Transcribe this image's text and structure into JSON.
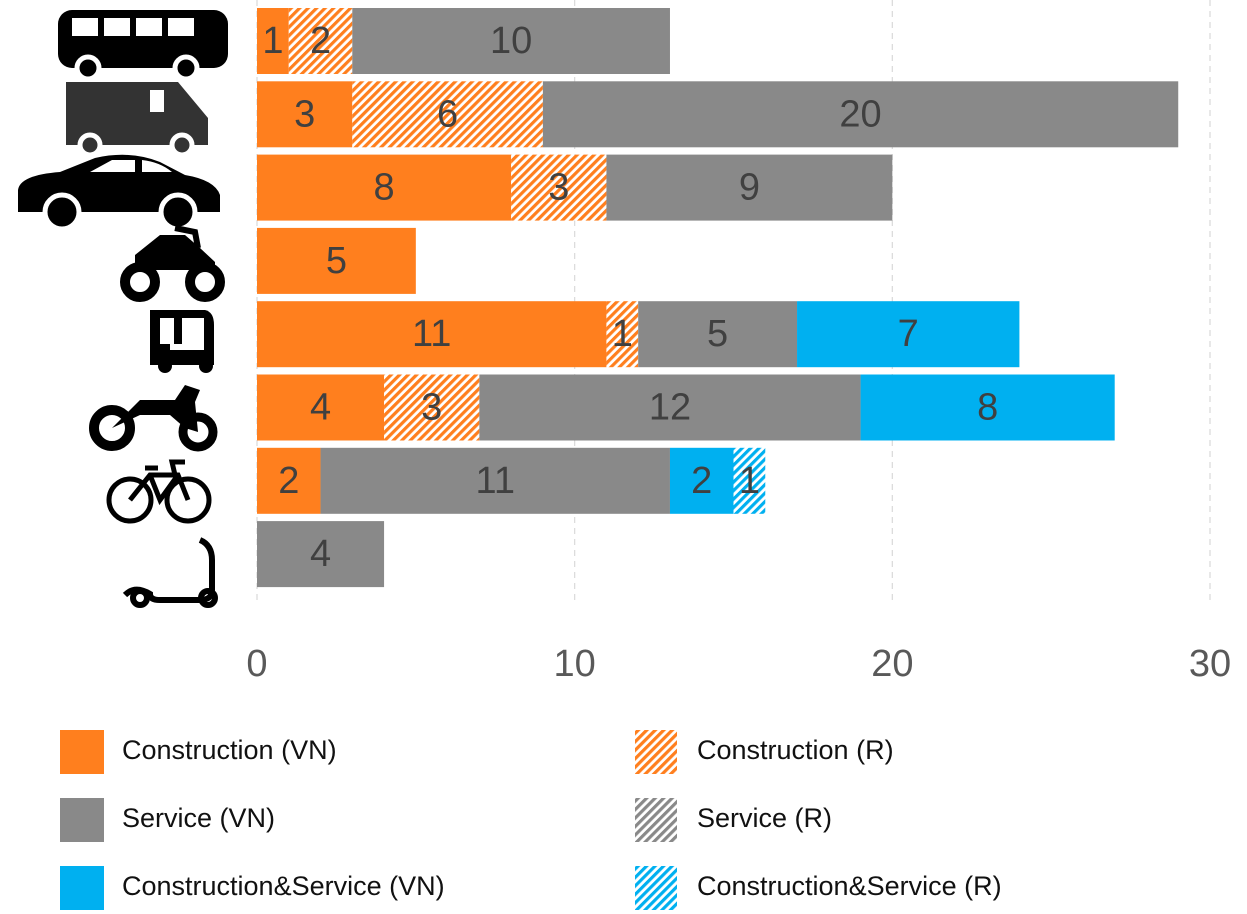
{
  "chart_data": {
    "type": "stacked-bar-horizontal",
    "categories": [
      null,
      null,
      null,
      null,
      null,
      null,
      null,
      null
    ],
    "series": [
      {
        "name": "Construction (VN)",
        "color": "#ff7f1e",
        "hatch": false,
        "values": [
          1,
          3,
          8,
          5,
          11,
          4,
          2,
          null
        ]
      },
      {
        "name": "Construction (R)",
        "color": "#ff7f1e",
        "hatch": true,
        "values": [
          2,
          6,
          3,
          null,
          1,
          3,
          null,
          null
        ]
      },
      {
        "name": "Service (VN)",
        "color": "#898989",
        "hatch": false,
        "values": [
          10,
          20,
          9,
          null,
          5,
          12,
          11,
          4
        ]
      },
      {
        "name": "Service (R)",
        "color": "#898989",
        "hatch": true,
        "values": [
          null,
          null,
          null,
          null,
          null,
          null,
          null,
          null
        ]
      },
      {
        "name": "Construction&Service (VN)",
        "color": "#00b0f0",
        "hatch": false,
        "values": [
          null,
          null,
          null,
          null,
          7,
          8,
          2,
          null
        ]
      },
      {
        "name": "Construction&Service (R)",
        "color": "#00b0f0",
        "hatch": true,
        "values": [
          null,
          null,
          null,
          null,
          null,
          null,
          1,
          null
        ]
      }
    ],
    "xlim": [
      0,
      30
    ],
    "xticks": [
      0,
      10,
      20,
      30
    ],
    "grid": true,
    "legend": "bottom"
  }
}
